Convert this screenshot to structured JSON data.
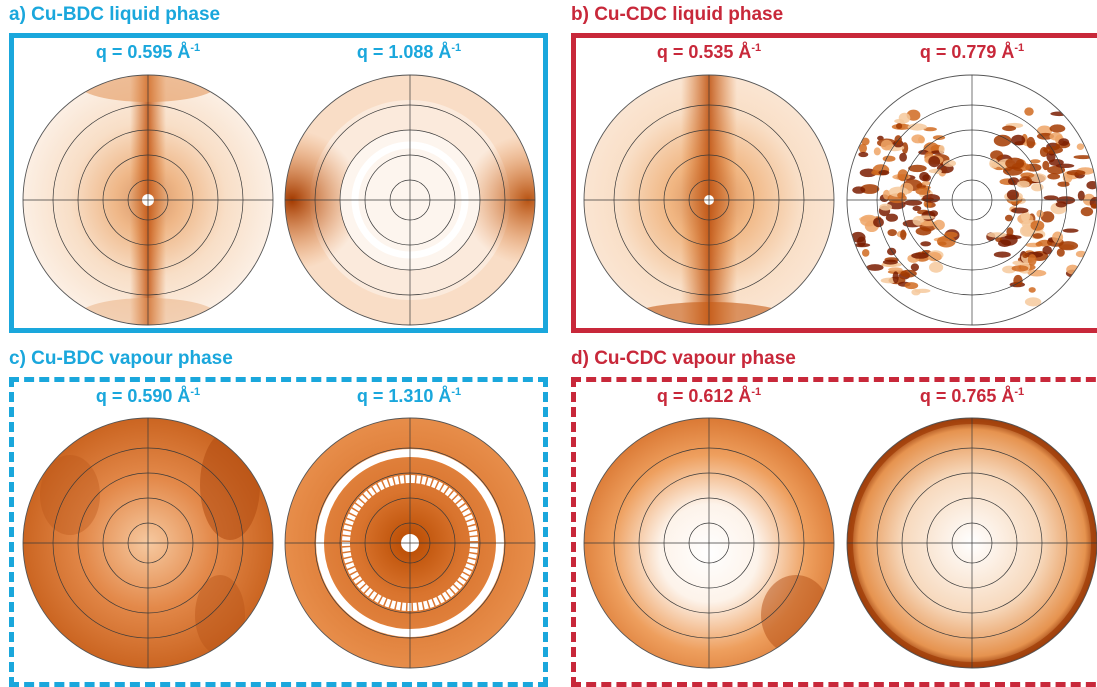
{
  "colors": {
    "bdc": "#1aa7dc",
    "cdc": "#c8283a"
  },
  "panels": {
    "a": {
      "title": "a) Cu-BDC liquid phase",
      "q1": {
        "prefix": "q = 0.595 Å",
        "exp": "-1"
      },
      "q2": {
        "prefix": "q = 1.088 Å",
        "exp": "-1"
      }
    },
    "b": {
      "title": "b) Cu-CDC liquid phase",
      "q1": {
        "prefix": "q = 0.535 Å",
        "exp": "-1"
      },
      "q2": {
        "prefix": "q = 0.779 Å",
        "exp": "-1"
      }
    },
    "c": {
      "title": "c) Cu-BDC vapour phase",
      "q1": {
        "prefix": "q = 0.590 Å",
        "exp": "-1"
      },
      "q2": {
        "prefix": "q = 1.310 Å",
        "exp": "-1"
      }
    },
    "d": {
      "title": "d) Cu-CDC vapour phase",
      "q1": {
        "prefix": "q = 0.612 Å",
        "exp": "-1"
      },
      "q2": {
        "prefix": "q = 0.765 Å",
        "exp": "-1"
      }
    }
  }
}
